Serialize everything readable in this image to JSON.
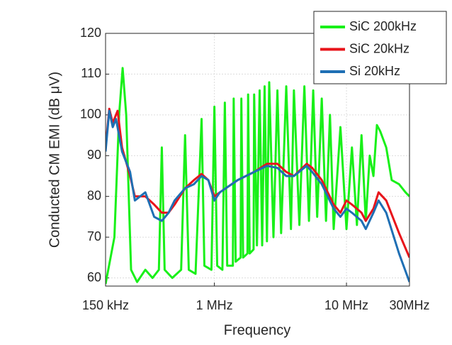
{
  "chart_data": {
    "type": "line",
    "xlabel": "Frequency",
    "ylabel": "Conducted CM EMI (dB μV)",
    "xscale": "log",
    "xlim": [
      150000,
      30000000
    ],
    "xticks": [
      {
        "value": 150000,
        "label": "150 kHz"
      },
      {
        "value": 1000000,
        "label": "1 MHz"
      },
      {
        "value": 10000000,
        "label": "10 MHz"
      },
      {
        "value": 30000000,
        "label": "30MHz"
      }
    ],
    "ylim": [
      58,
      120
    ],
    "yticks": [
      60,
      70,
      80,
      90,
      100,
      110,
      120
    ],
    "grid": true,
    "legend": "northeast",
    "series": [
      {
        "name": "SiC 200kHz",
        "color": "#19f019",
        "x": [
          150000,
          175000,
          190000,
          202000,
          215000,
          234000,
          260000,
          300000,
          340000,
          380000,
          400000,
          420000,
          480000,
          560000,
          600000,
          640000,
          720000,
          800000,
          840000,
          950000,
          1000000,
          1050000,
          1150000,
          1200000,
          1250000,
          1380000,
          1400000,
          1450000,
          1580000,
          1600000,
          1650000,
          1780000,
          1800000,
          1850000,
          1980000,
          2000000,
          2100000,
          2200000,
          2300000,
          2400000,
          2500000,
          2600000,
          2800000,
          3000000,
          3200000,
          3500000,
          3800000,
          4000000,
          4400000,
          4800000,
          5200000,
          5600000,
          6000000,
          6500000,
          7000000,
          7500000,
          8000000,
          9000000,
          10000000,
          11000000,
          12000000,
          13000000,
          14000000,
          15000000,
          16000000,
          17000000,
          18000000,
          20000000,
          22000000,
          25000000,
          28000000,
          30000000
        ],
        "values": [
          58.5,
          70,
          100,
          111.5,
          100,
          62,
          59,
          62,
          60,
          62,
          92,
          62,
          60,
          62,
          95,
          62,
          61,
          99,
          63,
          62,
          102,
          63,
          62,
          103,
          63,
          63,
          104,
          64,
          65,
          104,
          65,
          66,
          105,
          66,
          67,
          105,
          68,
          106,
          68,
          107,
          69,
          108,
          70,
          106,
          71,
          107,
          72,
          106,
          73,
          107,
          74,
          106,
          75,
          104,
          74,
          100,
          72,
          97,
          72,
          92,
          73,
          95,
          74,
          90,
          85,
          97.5,
          96,
          92,
          84,
          83,
          81,
          80
        ]
      },
      {
        "name": "SiC 20kHz",
        "color": "#e8141b",
        "x": [
          150000,
          160000,
          170000,
          185000,
          200000,
          230000,
          250000,
          300000,
          350000,
          400000,
          450000,
          500000,
          600000,
          700000,
          800000,
          900000,
          1000000,
          1100000,
          1500000,
          2000000,
          2500000,
          3000000,
          3500000,
          4000000,
          5000000,
          5500000,
          6500000,
          8000000,
          9000000,
          10000000,
          11000000,
          13000000,
          14000000,
          16000000,
          17500000,
          20000000,
          25000000,
          30000000
        ],
        "values": [
          92,
          101.5,
          98,
          101,
          92,
          85,
          80,
          80,
          78,
          76,
          76,
          78,
          82,
          84,
          85.5,
          84,
          80,
          81,
          84,
          86,
          88,
          88,
          86,
          85,
          88,
          87,
          84,
          78,
          76,
          79,
          78,
          76,
          74,
          77,
          81,
          79,
          71,
          65
        ]
      },
      {
        "name": "Si 20kHz",
        "color": "#1f6fb4",
        "x": [
          150000,
          160000,
          170000,
          180000,
          200000,
          230000,
          250000,
          300000,
          350000,
          400000,
          450000,
          500000,
          600000,
          700000,
          800000,
          900000,
          1000000,
          1100000,
          1500000,
          2000000,
          2500000,
          3000000,
          3500000,
          4000000,
          5000000,
          5500000,
          6500000,
          8000000,
          9000000,
          10000000,
          11000000,
          13000000,
          14000000,
          16000000,
          17500000,
          20000000,
          25000000,
          30000000
        ],
        "values": [
          91,
          101,
          97,
          99,
          91,
          86,
          79,
          81,
          75,
          74,
          76,
          79,
          82,
          83,
          85,
          84,
          79,
          81,
          84,
          86,
          87.5,
          87,
          85,
          85,
          87.5,
          86,
          83,
          77,
          75,
          77,
          76,
          74,
          72,
          76,
          79,
          76,
          66,
          59
        ]
      }
    ]
  }
}
